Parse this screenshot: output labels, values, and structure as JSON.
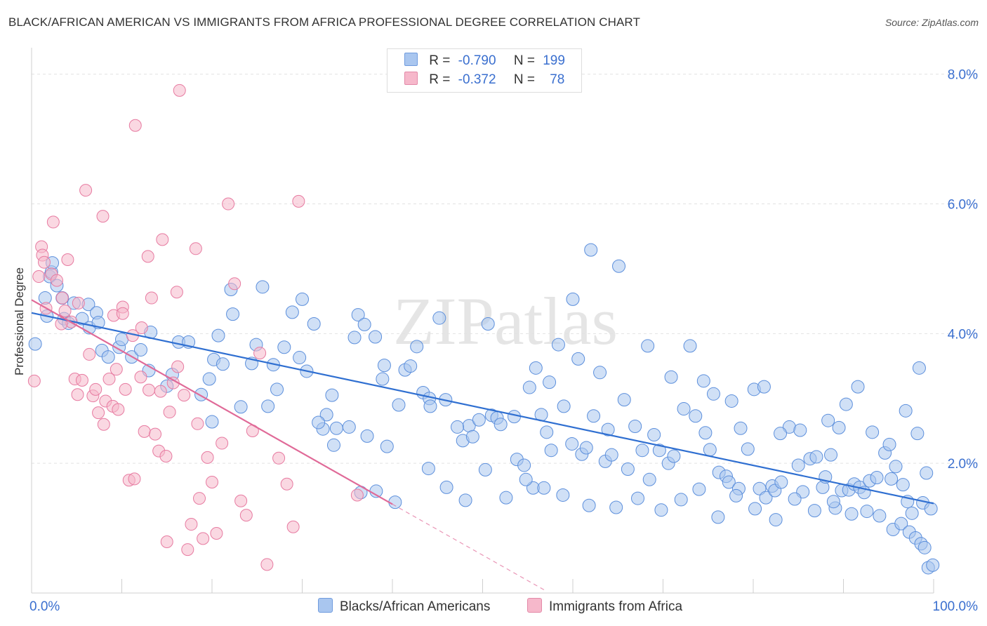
{
  "title": "BLACK/AFRICAN AMERICAN VS IMMIGRANTS FROM AFRICA PROFESSIONAL DEGREE CORRELATION CHART",
  "source": "Source: ZipAtlas.com",
  "watermark": "ZIPatlas",
  "legend": {
    "rows": [
      {
        "r_label": "R =",
        "r_value": "-0.790",
        "n_label": "N =",
        "n_value": "199",
        "color": "#a9c6ef"
      },
      {
        "r_label": "R =",
        "r_value": "-0.372",
        "n_label": "N =",
        "n_value": "78",
        "color": "#f6b8cb"
      }
    ]
  },
  "colors": {
    "blue": "#3a78d4",
    "blue_fill": "#a9c6ef",
    "pink": "#e06a98",
    "pink_fill": "#f6b8cb",
    "axis_label": "#3a6fcf"
  },
  "chart_data": {
    "type": "scatter",
    "title": "BLACK/AFRICAN AMERICAN VS IMMIGRANTS FROM AFRICA PROFESSIONAL DEGREE CORRELATION CHART",
    "xlabel": "",
    "ylabel": "Professional Degree",
    "x_range": [
      0,
      100
    ],
    "y_range": [
      0,
      8.3
    ],
    "x_tick_labels": [
      "0.0%",
      "100.0%"
    ],
    "y_ticks": [
      2.0,
      4.0,
      6.0,
      8.0
    ],
    "y_tick_labels": [
      "2.0%",
      "4.0%",
      "6.0%",
      "8.0%"
    ],
    "grid": true,
    "legend_position": "top-center",
    "series": [
      {
        "name": "Blacks/African Americans",
        "color": "#3a78d4",
        "trend": {
          "x": [
            0,
            100
          ],
          "y": [
            4.32,
            1.38
          ],
          "dashed_from": null
        },
        "points": [
          [
            0.4,
            3.84
          ],
          [
            1.5,
            4.55
          ],
          [
            1.7,
            4.27
          ],
          [
            2.0,
            4.88
          ],
          [
            2.2,
            4.95
          ],
          [
            2.3,
            5.09
          ],
          [
            2.8,
            4.74
          ],
          [
            3.4,
            4.55
          ],
          [
            3.6,
            4.23
          ],
          [
            4.1,
            4.16
          ],
          [
            4.7,
            4.47
          ],
          [
            5.6,
            4.23
          ],
          [
            6.3,
            4.45
          ],
          [
            6.4,
            4.09
          ],
          [
            7.2,
            4.32
          ],
          [
            7.4,
            4.17
          ],
          [
            7.8,
            3.74
          ],
          [
            8.5,
            3.64
          ],
          [
            9.7,
            3.79
          ],
          [
            10.0,
            3.91
          ],
          [
            11.1,
            3.64
          ],
          [
            12.1,
            3.75
          ],
          [
            13.0,
            3.43
          ],
          [
            13.2,
            4.02
          ],
          [
            15.0,
            3.19
          ],
          [
            15.6,
            3.37
          ],
          [
            16.3,
            3.87
          ],
          [
            17.4,
            3.87
          ],
          [
            18.8,
            3.06
          ],
          [
            19.7,
            3.3
          ],
          [
            20.2,
            3.6
          ],
          [
            20.7,
            3.97
          ],
          [
            21.2,
            3.53
          ],
          [
            22.1,
            4.68
          ],
          [
            22.3,
            4.3
          ],
          [
            23.2,
            2.87
          ],
          [
            24.4,
            3.54
          ],
          [
            25.6,
            4.72
          ],
          [
            26.8,
            3.52
          ],
          [
            28.0,
            3.79
          ],
          [
            28.9,
            4.33
          ],
          [
            29.7,
            3.63
          ],
          [
            30.5,
            3.42
          ],
          [
            31.3,
            4.15
          ],
          [
            32.3,
            2.53
          ],
          [
            32.7,
            2.75
          ],
          [
            33.3,
            3.05
          ],
          [
            33.8,
            2.54
          ],
          [
            35.2,
            2.56
          ],
          [
            35.8,
            3.94
          ],
          [
            36.2,
            4.29
          ],
          [
            36.9,
            4.14
          ],
          [
            37.2,
            2.42
          ],
          [
            38.1,
            3.95
          ],
          [
            38.9,
            3.3
          ],
          [
            39.1,
            3.51
          ],
          [
            39.4,
            2.26
          ],
          [
            40.7,
            2.9
          ],
          [
            41.4,
            3.44
          ],
          [
            42.0,
            3.5
          ],
          [
            43.4,
            3.09
          ],
          [
            44.1,
            3.0
          ],
          [
            44.2,
            2.88
          ],
          [
            45.2,
            4.24
          ],
          [
            47.8,
            2.35
          ],
          [
            48.5,
            2.58
          ],
          [
            48.9,
            2.41
          ],
          [
            49.6,
            2.67
          ],
          [
            50.6,
            4.15
          ],
          [
            51.0,
            2.74
          ],
          [
            51.6,
            2.7
          ],
          [
            52.0,
            2.6
          ],
          [
            53.5,
            2.72
          ],
          [
            53.8,
            2.06
          ],
          [
            54.6,
            1.97
          ],
          [
            55.2,
            3.17
          ],
          [
            55.6,
            1.62
          ],
          [
            56.5,
            2.75
          ],
          [
            57.1,
            2.48
          ],
          [
            57.6,
            2.2
          ],
          [
            58.4,
            3.83
          ],
          [
            59.9,
            2.3
          ],
          [
            60.0,
            4.53
          ],
          [
            60.6,
            3.61
          ],
          [
            61.0,
            2.14
          ],
          [
            61.5,
            2.24
          ],
          [
            62.3,
            2.73
          ],
          [
            63.6,
            2.03
          ],
          [
            63.9,
            2.52
          ],
          [
            64.3,
            2.13
          ],
          [
            65.1,
            5.04
          ],
          [
            66.1,
            1.91
          ],
          [
            66.9,
            2.57
          ],
          [
            67.7,
            2.2
          ],
          [
            68.5,
            1.75
          ],
          [
            69.0,
            2.44
          ],
          [
            69.6,
            2.2
          ],
          [
            70.6,
            2.0
          ],
          [
            71.2,
            2.11
          ],
          [
            72.3,
            2.84
          ],
          [
            73.6,
            2.73
          ],
          [
            74.5,
            3.27
          ],
          [
            74.7,
            2.47
          ],
          [
            75.2,
            2.21
          ],
          [
            76.2,
            1.86
          ],
          [
            77.0,
            1.8
          ],
          [
            77.3,
            1.71
          ],
          [
            78.4,
            1.61
          ],
          [
            78.6,
            2.54
          ],
          [
            79.4,
            2.22
          ],
          [
            80.1,
            3.14
          ],
          [
            80.7,
            1.61
          ],
          [
            81.2,
            3.18
          ],
          [
            81.4,
            1.47
          ],
          [
            82.1,
            1.65
          ],
          [
            82.4,
            1.58
          ],
          [
            83.1,
            1.71
          ],
          [
            84.0,
            2.56
          ],
          [
            85.0,
            1.97
          ],
          [
            85.5,
            1.56
          ],
          [
            86.3,
            2.07
          ],
          [
            87.0,
            2.1
          ],
          [
            87.7,
            1.63
          ],
          [
            88.0,
            1.79
          ],
          [
            88.6,
            2.13
          ],
          [
            89.1,
            1.31
          ],
          [
            89.8,
            1.58
          ],
          [
            90.6,
            1.59
          ],
          [
            91.2,
            1.68
          ],
          [
            91.8,
            1.63
          ],
          [
            92.3,
            1.55
          ],
          [
            92.9,
            1.73
          ],
          [
            93.7,
            1.78
          ],
          [
            94.6,
            2.16
          ],
          [
            95.3,
            1.76
          ],
          [
            95.8,
            1.95
          ],
          [
            96.6,
            1.67
          ],
          [
            97.1,
            1.41
          ],
          [
            97.6,
            1.23
          ],
          [
            98.2,
            2.46
          ],
          [
            98.8,
            1.39
          ],
          [
            99.2,
            1.85
          ],
          [
            99.7,
            1.3
          ],
          [
            31.8,
            2.63
          ],
          [
            33.5,
            2.28
          ],
          [
            36.5,
            1.55
          ],
          [
            38.2,
            1.57
          ],
          [
            40.3,
            1.4
          ],
          [
            44.0,
            1.92
          ],
          [
            46.0,
            1.63
          ],
          [
            48.1,
            1.43
          ],
          [
            50.3,
            1.9
          ],
          [
            52.6,
            1.47
          ],
          [
            54.8,
            1.75
          ],
          [
            56.8,
            1.62
          ],
          [
            58.9,
            1.51
          ],
          [
            61.8,
            1.35
          ],
          [
            64.8,
            1.32
          ],
          [
            67.2,
            1.46
          ],
          [
            69.8,
            1.28
          ],
          [
            72.0,
            1.44
          ],
          [
            74.0,
            1.6
          ],
          [
            76.1,
            1.17
          ],
          [
            78.1,
            1.5
          ],
          [
            80.2,
            1.3
          ],
          [
            82.5,
            1.13
          ],
          [
            84.6,
            1.45
          ],
          [
            86.8,
            1.27
          ],
          [
            88.9,
            1.41
          ],
          [
            90.9,
            1.22
          ],
          [
            92.6,
            1.26
          ],
          [
            94.0,
            1.19
          ],
          [
            95.5,
            0.98
          ],
          [
            96.4,
            1.07
          ],
          [
            97.3,
            0.94
          ],
          [
            98.0,
            0.85
          ],
          [
            98.6,
            0.76
          ],
          [
            99.0,
            0.7
          ],
          [
            99.4,
            0.39
          ],
          [
            99.9,
            0.43
          ],
          [
            83.0,
            2.46
          ],
          [
            85.2,
            2.51
          ],
          [
            88.3,
            2.66
          ],
          [
            90.3,
            2.91
          ],
          [
            93.2,
            2.48
          ],
          [
            95.1,
            2.29
          ],
          [
            96.9,
            2.81
          ],
          [
            98.4,
            3.47
          ],
          [
            91.6,
            3.18
          ],
          [
            89.5,
            2.55
          ],
          [
            77.6,
            2.96
          ],
          [
            75.6,
            3.07
          ],
          [
            73.0,
            3.81
          ],
          [
            70.9,
            3.33
          ],
          [
            68.3,
            3.81
          ],
          [
            65.7,
            2.98
          ],
          [
            63.0,
            3.4
          ],
          [
            59.0,
            2.88
          ],
          [
            57.4,
            3.25
          ],
          [
            55.9,
            3.47
          ],
          [
            62.0,
            5.29
          ],
          [
            47.2,
            2.56
          ],
          [
            45.9,
            2.98
          ],
          [
            42.7,
            3.8
          ],
          [
            26.2,
            2.88
          ],
          [
            27.2,
            3.14
          ],
          [
            30.0,
            4.53
          ],
          [
            24.9,
            3.83
          ],
          [
            20.0,
            2.64
          ]
        ]
      },
      {
        "name": "Immigrants from Africa",
        "color": "#e06a98",
        "trend": {
          "x": [
            0,
            40
          ],
          "y": [
            4.52,
            1.37
          ],
          "dashed_to": [
            56.8,
            0.05
          ]
        },
        "points": [
          [
            0.3,
            3.27
          ],
          [
            0.8,
            4.88
          ],
          [
            1.1,
            5.34
          ],
          [
            1.2,
            5.21
          ],
          [
            1.4,
            5.1
          ],
          [
            1.6,
            4.39
          ],
          [
            2.2,
            4.92
          ],
          [
            2.4,
            5.72
          ],
          [
            2.8,
            4.82
          ],
          [
            3.4,
            4.55
          ],
          [
            3.7,
            4.35
          ],
          [
            4.0,
            5.14
          ],
          [
            4.4,
            4.18
          ],
          [
            4.8,
            3.3
          ],
          [
            5.1,
            3.06
          ],
          [
            5.2,
            4.47
          ],
          [
            5.6,
            3.28
          ],
          [
            6.0,
            6.21
          ],
          [
            6.4,
            3.68
          ],
          [
            6.8,
            3.04
          ],
          [
            7.4,
            2.78
          ],
          [
            7.9,
            5.81
          ],
          [
            8.2,
            2.96
          ],
          [
            8.6,
            3.3
          ],
          [
            9.0,
            2.88
          ],
          [
            9.4,
            3.45
          ],
          [
            9.6,
            2.83
          ],
          [
            10.1,
            4.41
          ],
          [
            10.4,
            3.14
          ],
          [
            10.8,
            1.74
          ],
          [
            11.2,
            3.97
          ],
          [
            11.5,
            7.21
          ],
          [
            12.1,
            3.33
          ],
          [
            12.5,
            2.49
          ],
          [
            12.9,
            5.19
          ],
          [
            13.3,
            4.55
          ],
          [
            13.7,
            2.45
          ],
          [
            14.1,
            2.19
          ],
          [
            14.5,
            5.45
          ],
          [
            14.9,
            2.11
          ],
          [
            15.3,
            2.79
          ],
          [
            15.7,
            3.24
          ],
          [
            16.1,
            4.64
          ],
          [
            16.4,
            7.75
          ],
          [
            16.9,
            3.05
          ],
          [
            17.3,
            0.67
          ],
          [
            17.7,
            1.06
          ],
          [
            18.2,
            5.31
          ],
          [
            18.6,
            1.46
          ],
          [
            19.0,
            0.84
          ],
          [
            19.5,
            2.09
          ],
          [
            20.0,
            1.71
          ],
          [
            20.5,
            0.92
          ],
          [
            21.1,
            2.31
          ],
          [
            21.8,
            6.0
          ],
          [
            22.5,
            4.77
          ],
          [
            23.2,
            1.42
          ],
          [
            23.8,
            1.2
          ],
          [
            24.5,
            2.5
          ],
          [
            25.3,
            3.7
          ],
          [
            26.1,
            0.44
          ],
          [
            27.4,
            2.08
          ],
          [
            28.3,
            1.68
          ],
          [
            29.0,
            1.02
          ],
          [
            29.6,
            6.04
          ],
          [
            36.1,
            1.51
          ],
          [
            7.1,
            3.14
          ],
          [
            8.0,
            2.6
          ],
          [
            9.1,
            4.28
          ],
          [
            12.2,
            4.09
          ],
          [
            13.0,
            3.13
          ],
          [
            14.3,
            3.11
          ],
          [
            15.0,
            0.79
          ],
          [
            16.2,
            3.49
          ],
          [
            18.4,
            2.61
          ],
          [
            10.1,
            4.31
          ],
          [
            11.4,
            1.76
          ],
          [
            3.3,
            4.15
          ]
        ]
      }
    ]
  },
  "bottom_legend": [
    {
      "label": "Blacks/African Americans",
      "color": "#a9c6ef"
    },
    {
      "label": "Immigrants from Africa",
      "color": "#f6b8cb"
    }
  ]
}
